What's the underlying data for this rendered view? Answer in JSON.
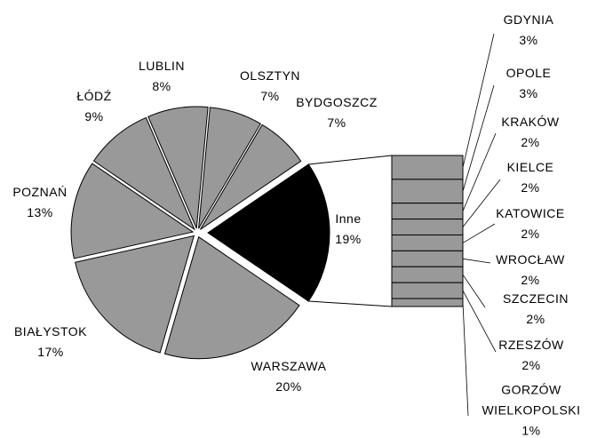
{
  "chart_data": {
    "type": "pie",
    "categories": [
      "Inne",
      "WARSZAWA",
      "BIAŁYSTOK",
      "POZNAŃ",
      "ŁÓDŹ",
      "LUBLIN",
      "OLSZTYN",
      "BYDGOSZCZ"
    ],
    "values": [
      19,
      20,
      17,
      13,
      9,
      8,
      7,
      7
    ],
    "value_labels": [
      "19%",
      "20%",
      "17%",
      "13%",
      "9%",
      "8%",
      "7%",
      "7%"
    ],
    "colors": [
      "#000000",
      "#999999",
      "#999999",
      "#999999",
      "#999999",
      "#999999",
      "#999999",
      "#999999"
    ],
    "breakdown": {
      "categories": [
        "GDYNIA",
        "OPOLE",
        "KRAKÓW",
        "KIELCE",
        "KATOWICE",
        "WROCŁAW",
        "SZCZECIN",
        "RZESZÓW",
        "GORZÓW WIELKOPOLSKI"
      ],
      "values": [
        3,
        3,
        2,
        2,
        2,
        2,
        2,
        2,
        1
      ],
      "value_labels": [
        "3%",
        "3%",
        "2%",
        "2%",
        "2%",
        "2%",
        "2%",
        "2%",
        "1%"
      ],
      "color": "#999999"
    }
  }
}
